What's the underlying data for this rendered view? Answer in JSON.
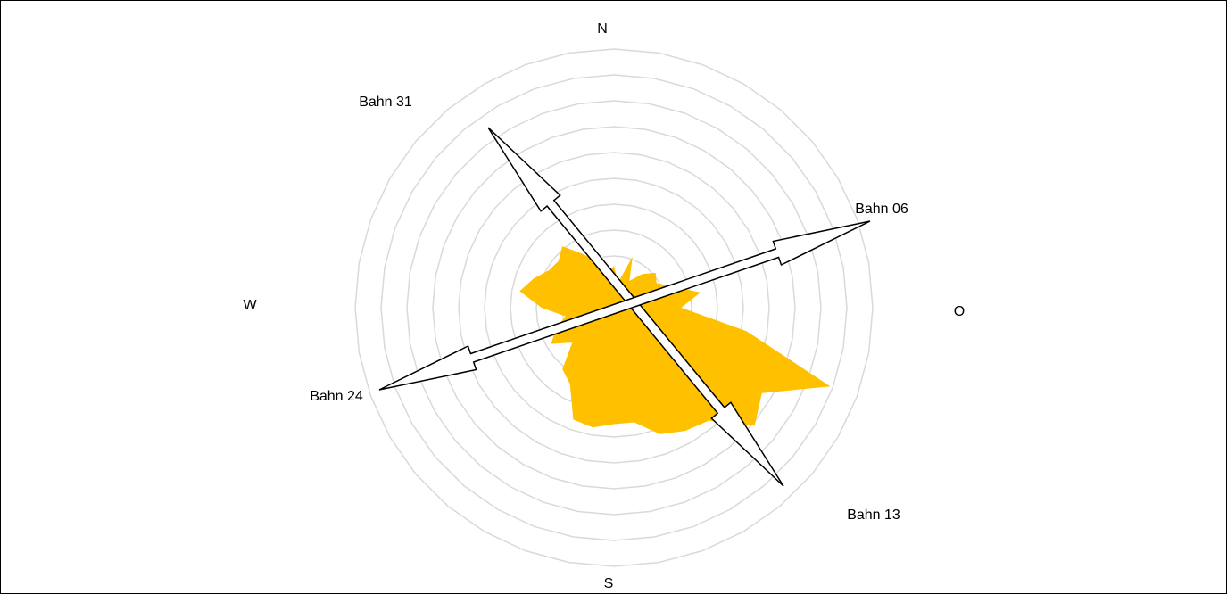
{
  "chart_data": {
    "type": "radar-area",
    "values": [
      1.6,
      1.0,
      2.1,
      1.2,
      1.7,
      2.1,
      1.9,
      2.4,
      3.4,
      2.6,
      5.2,
      8.9,
      6.6,
      7.1,
      5.7,
      5.5,
      5.2,
      4.5,
      4.5,
      4.7,
      4.6,
      3.4,
      3.1,
      2.1,
      2.8,
      2.4,
      1.9,
      2.8,
      3.7,
      3.3,
      2.9,
      2.8,
      3.1,
      2.4,
      1.9,
      1.4
    ],
    "color": "#ffc000",
    "rlim": [
      0,
      10
    ],
    "rticks": [
      1,
      2,
      3,
      4,
      5,
      6,
      7,
      8,
      9,
      10
    ],
    "grid": true,
    "directions": [
      "N",
      "O",
      "S",
      "W"
    ],
    "runways": [
      "Bahn 31",
      "Bahn 06",
      "Bahn 24",
      "Bahn 13"
    ]
  }
}
